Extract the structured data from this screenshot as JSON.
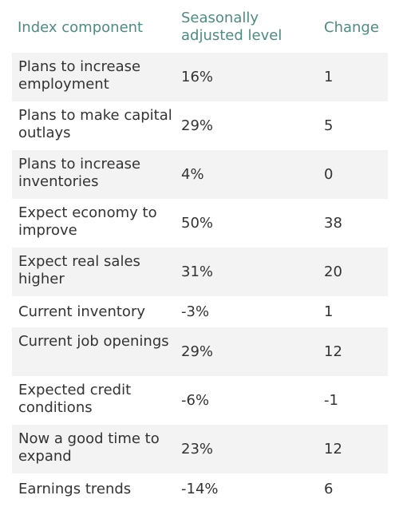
{
  "table": {
    "headers": {
      "component": "Index component",
      "level": "Seasonally adjusted level",
      "change": "Change"
    },
    "rows": [
      {
        "component": "Plans to increase employment",
        "level": "16%",
        "change": "1"
      },
      {
        "component": "Plans to make capital outlays",
        "level": "29%",
        "change": "5"
      },
      {
        "component": "Plans to increase inventories",
        "level": "4%",
        "change": "0"
      },
      {
        "component": "Expect economy to improve",
        "level": "50%",
        "change": "38"
      },
      {
        "component": "Expect real sales higher",
        "level": "31%",
        "change": "20"
      },
      {
        "component": "Current inventory",
        "level": "-3%",
        "change": "1"
      },
      {
        "component": "Current job openings",
        "level": "29%",
        "change": "12"
      },
      {
        "component": "Expected credit conditions",
        "level": "-6%",
        "change": "-1"
      },
      {
        "component": "Now a good time to expand",
        "level": "23%",
        "change": "12"
      },
      {
        "component": "Earnings trends",
        "level": "-14%",
        "change": "6"
      }
    ]
  }
}
